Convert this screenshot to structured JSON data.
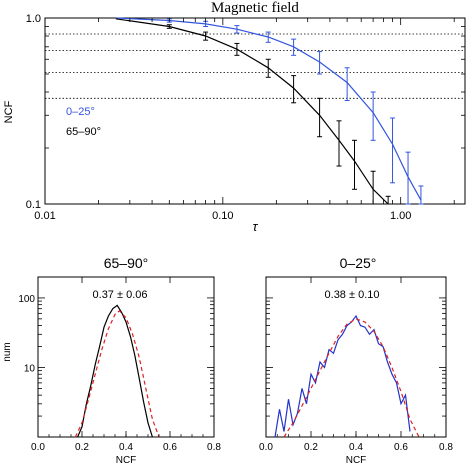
{
  "chart_data": [
    {
      "type": "line",
      "title": "Magnetic field",
      "xlabel": "τ",
      "ylabel": "NCF",
      "xscale": "log",
      "yscale": "log",
      "xlim": [
        0.01,
        2.3
      ],
      "ylim": [
        0.1,
        1.0
      ],
      "xticks": [
        "0.01",
        "0.10",
        "1.00"
      ],
      "yticks": [
        "0.1",
        "1.0"
      ],
      "reference_levels": [
        0.82,
        0.67,
        0.51,
        0.37
      ],
      "legend_placement": "left",
      "series": [
        {
          "name": "0–25°",
          "color": "#3355dd",
          "x": [
            0.025,
            0.05,
            0.08,
            0.12,
            0.18,
            0.25,
            0.35,
            0.5,
            0.7,
            0.9,
            1.1,
            1.3
          ],
          "y": [
            1.0,
            0.97,
            0.93,
            0.87,
            0.79,
            0.7,
            0.58,
            0.45,
            0.31,
            0.21,
            0.14,
            0.105
          ],
          "err": [
            0.0,
            0.02,
            0.03,
            0.04,
            0.05,
            0.07,
            0.08,
            0.09,
            0.09,
            0.08,
            0.05,
            0.02
          ]
        },
        {
          "name": "65–90°",
          "color": "#000000",
          "x": [
            0.025,
            0.05,
            0.08,
            0.12,
            0.18,
            0.25,
            0.35,
            0.45,
            0.55,
            0.7,
            0.85
          ],
          "y": [
            0.99,
            0.9,
            0.8,
            0.68,
            0.54,
            0.42,
            0.3,
            0.22,
            0.17,
            0.12,
            0.1
          ],
          "err": [
            0.0,
            0.02,
            0.04,
            0.05,
            0.06,
            0.07,
            0.07,
            0.06,
            0.05,
            0.03,
            0.01
          ]
        }
      ]
    },
    {
      "type": "line",
      "title": "65–90°",
      "xlabel": "NCF",
      "ylabel": "num",
      "yscale": "log",
      "xlim": [
        0.0,
        0.8
      ],
      "ylim": [
        1,
        200
      ],
      "xticks": [
        "0.0",
        "0.2",
        "0.4",
        "0.6",
        "0.8"
      ],
      "yticks": [
        "10",
        "100"
      ],
      "annotation": "0.37 ± 0.06",
      "series": [
        {
          "name": "histogram",
          "color": "#000000",
          "x": [
            0.18,
            0.2,
            0.22,
            0.24,
            0.26,
            0.28,
            0.3,
            0.32,
            0.34,
            0.36,
            0.38,
            0.4,
            0.42,
            0.44,
            0.46,
            0.48,
            0.5,
            0.52
          ],
          "y": [
            1.0,
            1.4,
            3.0,
            5.5,
            11,
            20,
            38,
            55,
            70,
            78,
            62,
            45,
            28,
            15,
            7,
            3.2,
            1.6,
            1.0
          ]
        },
        {
          "name": "fit",
          "color": "#dd2222",
          "dashed": true,
          "x": [
            0.17,
            0.2,
            0.23,
            0.26,
            0.29,
            0.32,
            0.35,
            0.37,
            0.4,
            0.43,
            0.46,
            0.49,
            0.52,
            0.55
          ],
          "y": [
            1.0,
            1.6,
            3.5,
            8,
            18,
            36,
            58,
            65,
            52,
            30,
            14,
            5,
            1.8,
            1.0
          ]
        }
      ]
    },
    {
      "type": "line",
      "title": "0–25°",
      "xlabel": "NCF",
      "ylabel": "",
      "yscale": "log",
      "xlim": [
        0.0,
        0.8
      ],
      "ylim": [
        1,
        200
      ],
      "xticks": [
        "0.0",
        "0.2",
        "0.4",
        "0.6",
        "0.8"
      ],
      "annotation": "0.38 ± 0.10",
      "series": [
        {
          "name": "histogram",
          "color": "#2233cc",
          "x": [
            0.04,
            0.06,
            0.08,
            0.1,
            0.12,
            0.14,
            0.16,
            0.18,
            0.2,
            0.22,
            0.24,
            0.26,
            0.28,
            0.3,
            0.32,
            0.34,
            0.36,
            0.38,
            0.4,
            0.42,
            0.44,
            0.46,
            0.48,
            0.5,
            0.52,
            0.54,
            0.56,
            0.58,
            0.6,
            0.62,
            0.64
          ],
          "y": [
            1.0,
            2.5,
            1.2,
            3.5,
            1.5,
            2.2,
            5,
            3,
            8,
            6,
            12,
            10,
            18,
            16,
            25,
            30,
            40,
            45,
            55,
            40,
            38,
            30,
            35,
            22,
            20,
            12,
            8,
            6,
            3,
            4,
            1.2
          ]
        },
        {
          "name": "fit",
          "color": "#dd2222",
          "dashed": true,
          "x": [
            0.08,
            0.12,
            0.16,
            0.2,
            0.24,
            0.28,
            0.32,
            0.36,
            0.4,
            0.44,
            0.48,
            0.52,
            0.56,
            0.6,
            0.64,
            0.68
          ],
          "y": [
            1.0,
            1.6,
            2.8,
            5,
            9,
            16,
            28,
            42,
            50,
            45,
            33,
            20,
            10,
            4.5,
            1.8,
            1.0
          ]
        }
      ]
    }
  ]
}
